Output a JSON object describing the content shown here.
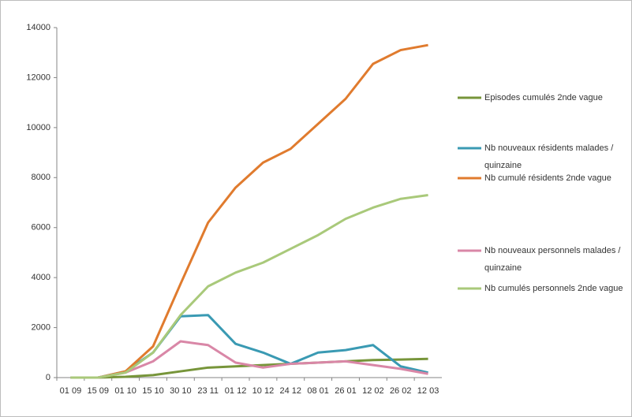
{
  "chart_data": {
    "type": "line",
    "categories": [
      "01 09",
      "15 09",
      "01 10",
      "15 10",
      "30 10",
      "23 11",
      "01 12",
      "10 12",
      "24 12",
      "08 01",
      "26 01",
      "12 02",
      "26 02",
      "12 03"
    ],
    "series": [
      {
        "name": "Episodes cumulés 2nde vague",
        "color": "#77953a",
        "values": [
          0,
          0,
          30,
          100,
          250,
          400,
          450,
          500,
          550,
          600,
          650,
          700,
          720,
          750
        ]
      },
      {
        "name": "Nb nouveaux résidents malades / quinzaine",
        "color": "#3a9ab3",
        "values": [
          0,
          0,
          250,
          1000,
          2450,
          2500,
          1350,
          1000,
          550,
          1000,
          1100,
          1300,
          450,
          200
        ]
      },
      {
        "name": "Nb cumulé résidents 2nde vague",
        "color": "#e07b2e",
        "values": [
          0,
          0,
          250,
          1250,
          3750,
          6200,
          7600,
          8600,
          9150,
          10150,
          11150,
          12550,
          13100,
          13300
        ]
      },
      {
        "name": "Nb nouveaux personnels malades / quinzaine",
        "color": "#d987a7",
        "values": [
          0,
          0,
          200,
          650,
          1450,
          1300,
          600,
          400,
          550,
          600,
          650,
          500,
          350,
          150
        ]
      },
      {
        "name": "Nb cumulés personnels 2nde vague",
        "color": "#a9c97a",
        "values": [
          0,
          0,
          200,
          1000,
          2500,
          3650,
          4200,
          4600,
          5150,
          5700,
          6350,
          6800,
          7150,
          7300
        ]
      }
    ],
    "ylim": [
      0,
      14000
    ],
    "yticks": [
      0,
      2000,
      4000,
      6000,
      8000,
      10000,
      12000,
      14000
    ],
    "grid": false,
    "legend": "right"
  }
}
